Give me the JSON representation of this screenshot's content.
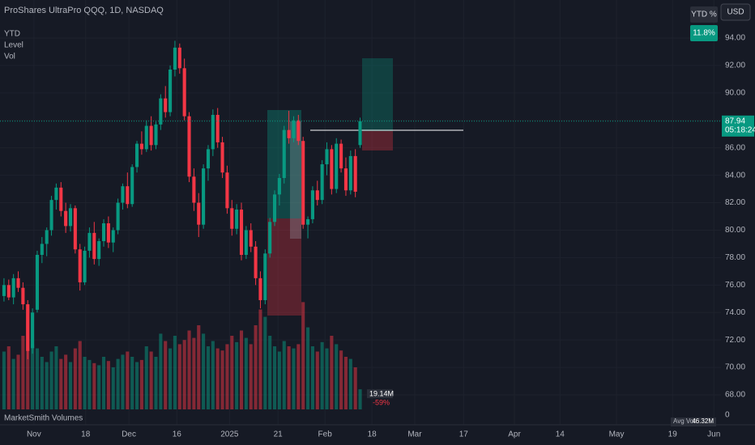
{
  "chart_data": {
    "type": "candlestick",
    "title": "ProShares UltraPro QQQ, 1D, NASDAQ",
    "indicators": [
      "YTD",
      "Level",
      "Vol"
    ],
    "volume_title": "MarketSmith Volumes",
    "currency": "USD",
    "ytd_label": "YTD %",
    "ytd_value": "11.8%",
    "up_color": "#089981",
    "down_color": "#f23645",
    "open": [
      75.2,
      76.0,
      75.1,
      76.5,
      75.8,
      74.6,
      71.4,
      74.2,
      78.2,
      79.0,
      80.0,
      82.2,
      83.1,
      81.4,
      80.3,
      81.6,
      78.6,
      76.2,
      78.5,
      79.8,
      77.9,
      79.2,
      80.5,
      79.1,
      80.0,
      82.0,
      83.2,
      81.9,
      84.6,
      86.3,
      85.9,
      87.6,
      86.2,
      87.7,
      89.6,
      88.6,
      91.7,
      93.3,
      91.8,
      88.3,
      83.9,
      82.0,
      80.4,
      84.5,
      85.9,
      88.4,
      86.4,
      84.2,
      81.6,
      80.1,
      81.5,
      78.2,
      80.0,
      78.8,
      76.5,
      74.9,
      78.3,
      80.6,
      82.6,
      83.8,
      87.3,
      86.7,
      88.0,
      86.5,
      80.4,
      80.8,
      82.9,
      82.2,
      84.8,
      85.9,
      83.0,
      86.3,
      84.5,
      82.9,
      85.4,
      86.2
    ],
    "high": [
      76.5,
      76.4,
      76.8,
      77.0,
      76.2,
      74.9,
      74.3,
      78.5,
      79.5,
      80.2,
      82.5,
      83.4,
      83.5,
      82.0,
      81.9,
      81.8,
      79.0,
      78.8,
      80.2,
      80.6,
      79.4,
      80.8,
      81.0,
      80.2,
      82.3,
      83.4,
      84.2,
      84.8,
      86.5,
      87.2,
      88.0,
      88.3,
      87.9,
      89.9,
      90.5,
      92.0,
      93.8,
      93.6,
      92.5,
      88.6,
      84.5,
      82.7,
      84.8,
      86.2,
      88.8,
      88.9,
      86.8,
      84.7,
      82.2,
      81.9,
      82.0,
      80.3,
      80.5,
      79.2,
      77.0,
      78.6,
      80.9,
      82.9,
      84.1,
      87.6,
      88.7,
      88.3,
      88.4,
      86.8,
      81.0,
      83.2,
      83.6,
      85.1,
      86.4,
      86.2,
      86.7,
      86.6,
      85.3,
      85.8,
      85.9,
      88.2
    ],
    "low": [
      74.8,
      74.9,
      74.6,
      75.5,
      74.2,
      70.6,
      71.0,
      74.0,
      77.6,
      78.1,
      79.6,
      81.5,
      81.0,
      79.8,
      79.9,
      78.3,
      75.6,
      76.0,
      78.0,
      77.5,
      77.4,
      78.8,
      78.7,
      78.4,
      79.7,
      81.5,
      81.6,
      81.7,
      84.2,
      85.5,
      85.7,
      85.8,
      85.9,
      87.3,
      88.2,
      88.3,
      91.2,
      91.4,
      88.0,
      83.5,
      81.4,
      79.5,
      80.1,
      83.6,
      85.4,
      86.0,
      83.8,
      81.2,
      79.6,
      79.7,
      77.8,
      77.9,
      78.4,
      76.0,
      74.3,
      74.6,
      78.0,
      80.3,
      81.8,
      83.4,
      86.3,
      86.4,
      86.2,
      80.1,
      79.4,
      80.5,
      81.8,
      81.9,
      84.0,
      82.6,
      82.7,
      84.2,
      82.5,
      82.6,
      82.4,
      86.0
    ],
    "close": [
      76.0,
      75.1,
      76.5,
      75.8,
      74.6,
      71.2,
      74.0,
      78.2,
      79.0,
      80.0,
      82.2,
      83.1,
      81.4,
      80.3,
      81.6,
      78.6,
      76.2,
      78.5,
      79.8,
      77.9,
      79.2,
      80.5,
      79.1,
      80.0,
      82.0,
      83.2,
      81.9,
      84.6,
      86.3,
      85.9,
      87.6,
      86.2,
      87.7,
      89.6,
      88.6,
      91.7,
      93.3,
      91.8,
      88.3,
      83.9,
      82.0,
      80.4,
      84.5,
      85.9,
      88.4,
      86.4,
      84.2,
      81.6,
      80.1,
      81.5,
      78.2,
      80.0,
      78.8,
      76.5,
      74.9,
      78.3,
      80.6,
      82.6,
      83.8,
      87.3,
      86.7,
      88.0,
      86.5,
      80.4,
      80.8,
      82.9,
      82.2,
      84.8,
      85.9,
      83.0,
      86.3,
      84.5,
      82.9,
      85.4,
      82.8,
      87.94
    ],
    "volume": [
      55,
      60,
      48,
      52,
      70,
      95,
      62,
      58,
      50,
      45,
      55,
      60,
      48,
      52,
      45,
      58,
      65,
      50,
      47,
      44,
      42,
      50,
      46,
      40,
      48,
      52,
      55,
      50,
      45,
      47,
      60,
      55,
      50,
      72,
      65,
      58,
      70,
      62,
      66,
      75,
      68,
      80,
      72,
      60,
      65,
      58,
      56,
      62,
      70,
      64,
      75,
      68,
      62,
      80,
      95,
      88,
      70,
      60,
      55,
      65,
      60,
      58,
      62,
      102,
      78,
      60,
      55,
      64,
      58,
      70,
      62,
      56,
      50,
      48,
      40,
      19.14
    ],
    "volume_badge": {
      "value": 19.14,
      "label": "19.14M",
      "change": "-59%"
    },
    "avg_volume": {
      "label": "Avg Vol:",
      "value": "46.32M"
    },
    "volume_yticks": [
      0
    ],
    "last_price": {
      "value": 87.94,
      "label": "87.94",
      "countdown": "05:18:24"
    },
    "xlim": [
      -0.5,
      151
    ],
    "ylim": [
      66.41,
      96.77
    ],
    "yticks": [
      {
        "value": 68,
        "label": "68.00"
      },
      {
        "value": 70,
        "label": "70.00"
      },
      {
        "value": 72,
        "label": "72.00"
      },
      {
        "value": 74,
        "label": "74.00"
      },
      {
        "value": 76,
        "label": "76.00"
      },
      {
        "value": 78,
        "label": "78.00"
      },
      {
        "value": 80,
        "label": "80.00"
      },
      {
        "value": 82,
        "label": "82.00"
      },
      {
        "value": 84,
        "label": "84.00"
      },
      {
        "value": 86,
        "label": "86.00"
      },
      {
        "value": 88,
        "label": "88.00"
      },
      {
        "value": 90,
        "label": "90.00"
      },
      {
        "value": 92,
        "label": "92.00"
      },
      {
        "value": 94,
        "label": "94.00"
      }
    ],
    "xticks": [
      {
        "value": 6.3,
        "label": "Nov"
      },
      {
        "value": 17.2,
        "label": "18"
      },
      {
        "value": 26.3,
        "label": "Dec"
      },
      {
        "value": 36.4,
        "label": "16"
      },
      {
        "value": 47.5,
        "label": "2025"
      },
      {
        "value": 57.7,
        "label": "21"
      },
      {
        "value": 67.6,
        "label": "Feb"
      },
      {
        "value": 77.5,
        "label": "18"
      },
      {
        "value": 86.5,
        "label": "Mar"
      },
      {
        "value": 96.8,
        "label": "17"
      },
      {
        "value": 107.5,
        "label": "Apr"
      },
      {
        "value": 117.1,
        "label": "14"
      },
      {
        "value": 129.0,
        "label": "May"
      },
      {
        "value": 140.8,
        "label": "19"
      },
      {
        "value": 149.5,
        "label": "Jun"
      }
    ],
    "grid": true
  }
}
